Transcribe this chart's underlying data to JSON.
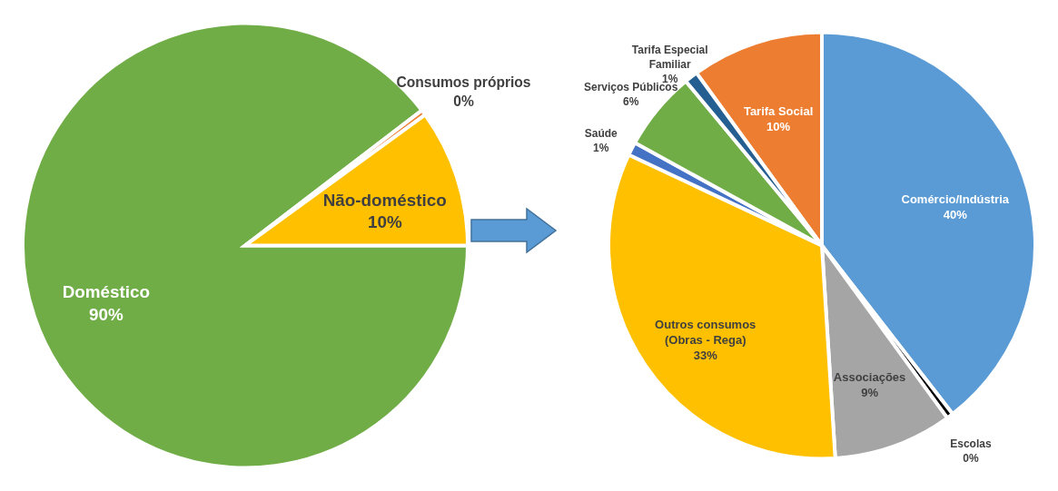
{
  "chart_data": [
    {
      "type": "pie",
      "categories": [
        "Doméstico",
        "Consumos próprios",
        "Não-doméstico"
      ],
      "values": [
        89.6,
        0.4,
        10
      ],
      "value_labels": [
        "90%",
        "0%",
        "10%"
      ],
      "colors": [
        "#70ad47",
        "#ed7d31",
        "#ffc000"
      ]
    },
    {
      "type": "pie",
      "categories": [
        "Tarifa Social",
        "Comércio/Indústria",
        "Escolas",
        "Associações",
        "Outros consumos\n(Obras - Rega)",
        "Saúde",
        "Serviços Públicos",
        "Tarifa Especial\nFamiliar"
      ],
      "values": [
        10,
        39.5,
        0.5,
        9,
        33,
        1,
        6,
        1
      ],
      "value_labels": [
        "10%",
        "40%",
        "0%",
        "9%",
        "33%",
        "1%",
        "6%",
        "1%"
      ],
      "colors": [
        "#ed7d31",
        "#5b9bd5",
        "#000000",
        "#a5a5a5",
        "#ffc000",
        "#4472c4",
        "#70ad47",
        "#255e91"
      ]
    }
  ]
}
